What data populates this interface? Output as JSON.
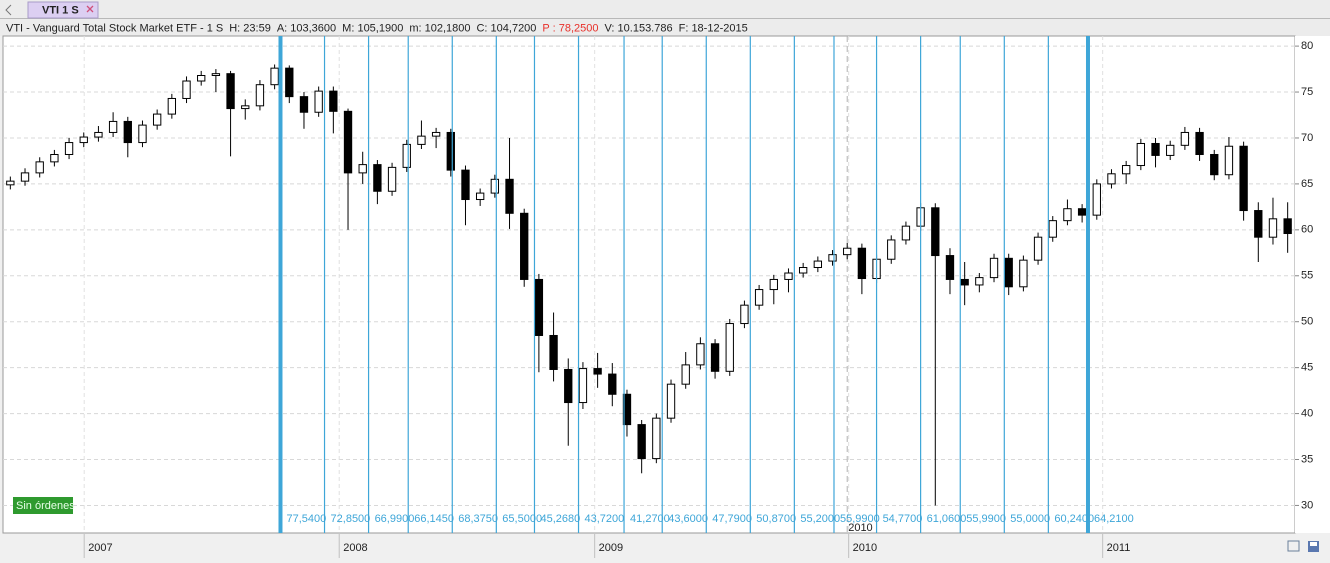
{
  "tab": {
    "label": "VTI 1 S"
  },
  "header": {
    "symbol": "VTI - Vanguard Total Stock Market ETF -  1 S",
    "fields": [
      {
        "text": "H: 23:59"
      },
      {
        "text": "A: 103,3600"
      },
      {
        "text": "M: 105,1900"
      },
      {
        "text": "m: 102,1800"
      },
      {
        "text": "C: 104,7200"
      },
      {
        "text": "P : 78,2500",
        "color": "#e8302a"
      },
      {
        "text": "V: 10.153.786"
      },
      {
        "text": "F: 18-12-2015"
      }
    ]
  },
  "badge": "Sin órdenes",
  "chart_data": {
    "type": "candlestick",
    "categories": [
      null,
      null,
      null,
      null,
      null,
      null,
      null,
      null,
      null,
      null,
      null,
      null,
      null,
      null,
      null,
      null,
      null,
      null,
      null,
      null,
      null,
      null,
      null,
      null,
      null,
      null,
      null,
      null,
      null,
      null,
      null,
      null,
      null,
      null,
      null,
      null,
      null,
      null,
      null,
      null,
      null,
      null,
      null,
      null,
      null,
      null,
      null,
      null,
      null,
      null,
      null,
      null,
      null,
      null,
      null,
      null,
      null,
      null,
      null,
      null,
      null,
      null,
      null,
      null,
      null,
      null,
      null,
      null,
      null,
      null,
      null,
      null,
      null,
      null,
      null,
      null,
      null,
      null,
      null,
      null,
      null,
      null,
      null,
      null,
      null,
      null,
      null,
      null
    ],
    "open": [
      64.9,
      65.3,
      66.2,
      67.4,
      68.2,
      69.5,
      70.1,
      70.6,
      71.8,
      69.5,
      71.4,
      72.6,
      74.3,
      76.2,
      76.8,
      77.0,
      73.2,
      73.5,
      75.8,
      77.6,
      74.5,
      72.8,
      75.1,
      72.9,
      66.2,
      67.1,
      64.2,
      66.8,
      69.3,
      70.2,
      70.6,
      66.5,
      63.3,
      64.0,
      65.5,
      61.8,
      54.6,
      48.5,
      44.8,
      41.2,
      44.9,
      44.3,
      42.1,
      38.8,
      35.1,
      39.5,
      43.2,
      45.3,
      47.6,
      44.6,
      49.8,
      51.8,
      53.5,
      54.6,
      55.3,
      55.9,
      56.6,
      57.3,
      58.0,
      54.7,
      56.8,
      58.9,
      60.4,
      62.4,
      57.2,
      54.6,
      54.0,
      54.8,
      56.9,
      53.8,
      56.7,
      59.2,
      61.0,
      62.3,
      61.6,
      65.0,
      66.1,
      67.0,
      69.4,
      68.1,
      69.2,
      70.6,
      68.2,
      66.0,
      69.1,
      62.1,
      59.2,
      61.2
    ],
    "high": [
      65.8,
      66.7,
      67.9,
      68.7,
      70.0,
      70.6,
      71.3,
      72.8,
      72.3,
      71.9,
      73.1,
      74.8,
      76.7,
      77.3,
      77.5,
      77.3,
      74.2,
      76.3,
      78.0,
      77.9,
      75.0,
      75.6,
      75.6,
      73.2,
      68.5,
      67.6,
      67.3,
      69.8,
      71.9,
      71.1,
      71.0,
      67.0,
      64.5,
      66.0,
      70.0,
      62.3,
      55.2,
      51.0,
      46.0,
      45.6,
      46.6,
      45.5,
      42.6,
      39.3,
      40.0,
      43.7,
      46.7,
      48.3,
      48.1,
      50.3,
      52.3,
      54.0,
      55.1,
      55.8,
      56.4,
      57.1,
      57.8,
      58.6,
      58.5,
      57.3,
      59.4,
      60.9,
      62.9,
      62.9,
      58.0,
      56.5,
      55.3,
      57.4,
      57.4,
      57.2,
      59.7,
      61.5,
      63.3,
      62.8,
      65.5,
      66.6,
      67.5,
      69.9,
      70.0,
      69.7,
      71.2,
      71.1,
      68.7,
      70.1,
      69.6,
      63.0,
      63.5,
      63.0
    ],
    "low": [
      64.4,
      64.8,
      65.7,
      66.9,
      67.7,
      69.0,
      69.6,
      70.1,
      67.9,
      69.0,
      70.9,
      72.1,
      73.8,
      75.7,
      75.0,
      68.0,
      72.0,
      73.0,
      75.3,
      73.8,
      71.0,
      72.3,
      70.5,
      60.0,
      65.0,
      62.8,
      63.7,
      66.3,
      68.8,
      68.9,
      65.8,
      60.5,
      62.6,
      63.5,
      60.1,
      53.8,
      44.5,
      43.5,
      36.5,
      40.5,
      42.8,
      40.8,
      37.5,
      33.5,
      34.6,
      39.0,
      42.7,
      44.8,
      43.8,
      44.1,
      49.3,
      51.3,
      51.9,
      53.2,
      54.8,
      55.4,
      56.1,
      56.8,
      53.0,
      54.2,
      56.3,
      58.4,
      59.9,
      30.0,
      53.0,
      51.8,
      53.2,
      54.3,
      52.9,
      53.3,
      56.2,
      58.7,
      60.5,
      60.8,
      61.1,
      64.5,
      65.0,
      66.5,
      66.8,
      67.6,
      68.7,
      67.5,
      65.4,
      65.5,
      61.0,
      56.5,
      58.4,
      57.5
    ],
    "close": [
      65.3,
      66.2,
      67.4,
      68.2,
      69.5,
      70.1,
      70.6,
      71.8,
      69.5,
      71.4,
      72.6,
      74.3,
      76.2,
      76.8,
      77.0,
      73.2,
      73.5,
      75.8,
      77.6,
      74.5,
      72.8,
      75.1,
      72.9,
      66.2,
      67.1,
      64.2,
      66.8,
      69.3,
      70.2,
      70.6,
      66.5,
      63.3,
      64.0,
      65.5,
      61.8,
      54.6,
      48.5,
      44.8,
      41.2,
      44.9,
      44.3,
      42.1,
      38.8,
      35.1,
      39.5,
      43.2,
      45.3,
      47.6,
      44.6,
      49.8,
      51.8,
      53.5,
      54.6,
      55.3,
      55.9,
      56.6,
      57.3,
      58.0,
      54.7,
      56.8,
      58.9,
      60.4,
      62.4,
      57.2,
      54.6,
      54.0,
      54.8,
      56.9,
      53.8,
      56.7,
      59.2,
      61.0,
      62.3,
      61.6,
      65.0,
      66.1,
      67.0,
      69.4,
      68.1,
      69.2,
      70.6,
      68.2,
      66.0,
      69.1,
      62.1,
      59.2,
      61.2,
      59.6
    ],
    "up_color": "#ffffff",
    "down_color": "#000000",
    "xlim": [
      -0.5,
      87.5
    ],
    "xticks": [
      {
        "value": 5.03,
        "label": "2007"
      },
      {
        "value": 22.4,
        "label": "2008"
      },
      {
        "value": 39.8,
        "label": "2009"
      },
      {
        "value": 57.1,
        "label": "2010"
      },
      {
        "value": 74.4,
        "label": "2011"
      }
    ],
    "ylim": [
      27,
      81.1
    ],
    "yticks": [
      30,
      35,
      40,
      45,
      50,
      55,
      60,
      65,
      70,
      75,
      80
    ],
    "grid": true,
    "cursor": {
      "x": 57.0,
      "label": "2010"
    },
    "markers": {
      "color": "#3ea6d8",
      "x": [
        18.4,
        21.4,
        24.4,
        27.1,
        30.1,
        33.1,
        35.7,
        38.7,
        41.8,
        44.4,
        47.4,
        50.4,
        53.4,
        56.1,
        59.0,
        62.0,
        64.7,
        67.7,
        70.7,
        73.4
      ],
      "values": [
        77.54,
        72.85,
        66.99,
        66.145,
        68.375,
        65.5,
        45.268,
        43.72,
        41.27,
        43.6,
        47.79,
        50.87,
        55.2,
        55.99,
        54.77,
        61.06,
        55.99,
        55.0,
        60.24,
        64.21
      ],
      "value_labels": [
        "77,5400",
        "72,8500",
        "66,9900",
        "66,1450",
        "68,3750",
        "65,5000",
        "45,2680",
        "43,7200",
        "41,2700",
        "43,6000",
        "47,7900",
        "50,8700",
        "55,2000",
        "55,9900",
        "54,7700",
        "61,0600",
        "55,9900",
        "55,0000",
        "60,2400",
        "64,2100"
      ],
      "emphasis": [
        true,
        false,
        false,
        false,
        false,
        false,
        false,
        false,
        false,
        false,
        false,
        false,
        false,
        false,
        false,
        false,
        false,
        false,
        false,
        true
      ]
    }
  }
}
